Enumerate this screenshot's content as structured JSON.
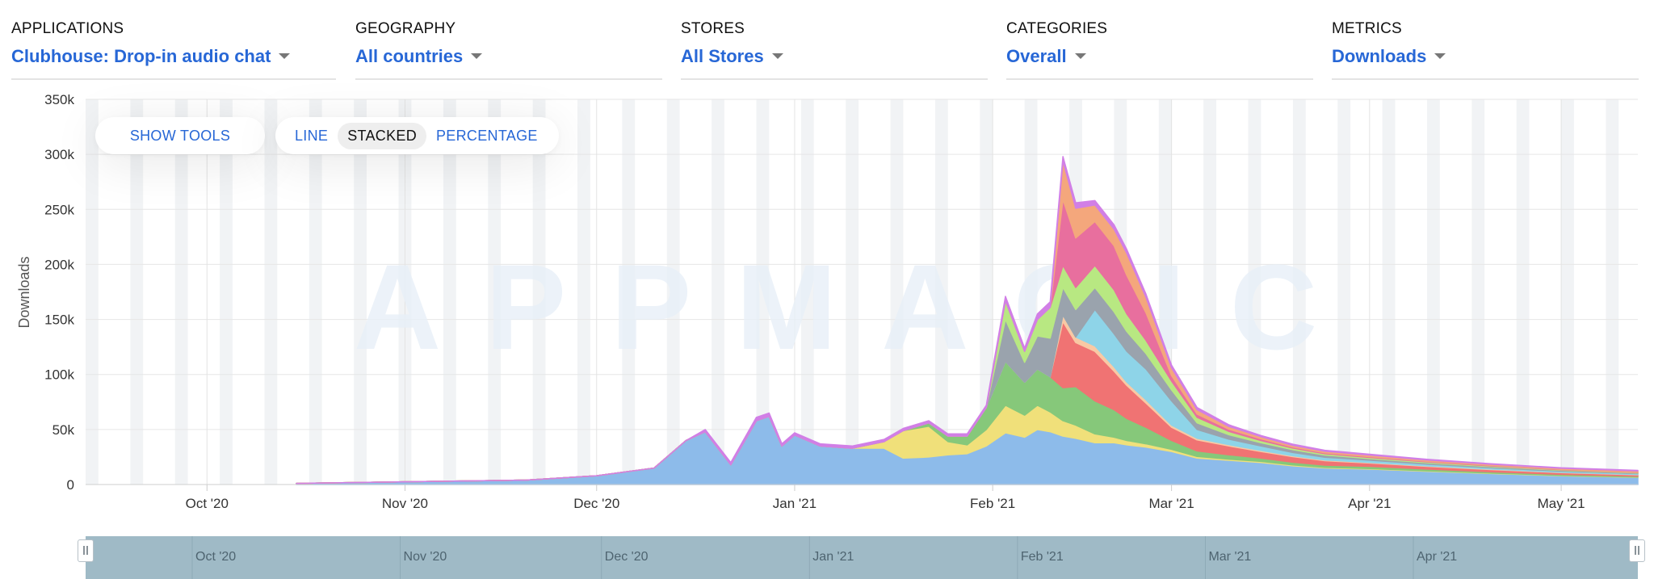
{
  "filters": [
    {
      "label": "APPLICATIONS",
      "value": "Clubhouse: Drop-in audio chat"
    },
    {
      "label": "GEOGRAPHY",
      "value": "All countries"
    },
    {
      "label": "STORES",
      "value": "All Stores"
    },
    {
      "label": "CATEGORIES",
      "value": "Overall"
    },
    {
      "label": "METRICS",
      "value": "Downloads"
    }
  ],
  "toolbar": {
    "show_tools": "SHOW TOOLS",
    "modes": [
      "LINE",
      "STACKED",
      "PERCENTAGE"
    ],
    "active_mode": "STACKED"
  },
  "watermark": "APPMAGIC",
  "navigator": {
    "labels": [
      "Oct '20",
      "Nov '20",
      "Dec '20",
      "Jan '21",
      "Feb '21",
      "Mar '21",
      "Apr '21"
    ]
  },
  "colors": {
    "accent": "#2767d6",
    "navigator": "#9fbac6",
    "weekend_band": "#f1f3f5"
  },
  "chart_data": {
    "type": "area",
    "stacked": true,
    "title": "",
    "xlabel": "",
    "ylabel": "Downloads",
    "ylim": [
      0,
      350000
    ],
    "yticks": [
      0,
      50000,
      100000,
      150000,
      200000,
      250000,
      300000,
      350000
    ],
    "ytick_labels": [
      "0",
      "50k",
      "100k",
      "150k",
      "200k",
      "250k",
      "300k",
      "350k"
    ],
    "x_range": [
      "2020-09-12",
      "2021-05-13"
    ],
    "xticks": [
      "2020-10-01",
      "2020-11-01",
      "2020-12-01",
      "2021-01-01",
      "2021-02-01",
      "2021-03-01",
      "2021-04-01",
      "2021-05-01"
    ],
    "xtick_labels": [
      "Oct '20",
      "Nov '20",
      "Dec '20",
      "Jan '21",
      "Feb '21",
      "Mar '21",
      "Apr '21",
      "May '21"
    ],
    "grid": true,
    "x": [
      "2020-10-15",
      "2020-11-01",
      "2020-11-20",
      "2020-12-01",
      "2020-12-10",
      "2020-12-15",
      "2020-12-18",
      "2020-12-22",
      "2020-12-26",
      "2020-12-28",
      "2020-12-30",
      "2021-01-01",
      "2021-01-05",
      "2021-01-10",
      "2021-01-15",
      "2021-01-18",
      "2021-01-22",
      "2021-01-25",
      "2021-01-28",
      "2021-01-31",
      "2021-02-03",
      "2021-02-06",
      "2021-02-08",
      "2021-02-10",
      "2021-02-12",
      "2021-02-14",
      "2021-02-17",
      "2021-02-20",
      "2021-02-22",
      "2021-02-25",
      "2021-03-01",
      "2021-03-05",
      "2021-03-10",
      "2021-03-15",
      "2021-03-20",
      "2021-03-25",
      "2021-04-01",
      "2021-04-10",
      "2021-04-20",
      "2021-05-01",
      "2021-05-13"
    ],
    "series": [
      {
        "color": "#8dbbea",
        "values": [
          1000,
          2500,
          4000,
          8000,
          15000,
          40000,
          48000,
          18000,
          58000,
          62000,
          35000,
          45000,
          35000,
          33000,
          33000,
          24000,
          25000,
          27000,
          28000,
          35000,
          47000,
          43000,
          50000,
          48000,
          44000,
          42000,
          38000,
          38000,
          36000,
          34000,
          30000,
          24000,
          22000,
          20000,
          17000,
          15000,
          14000,
          12000,
          10000,
          8000,
          6500
        ]
      },
      {
        "color": "#f0e07a",
        "values": [
          0,
          0,
          0,
          0,
          0,
          0,
          0,
          0,
          0,
          0,
          0,
          0,
          0,
          0,
          6000,
          25000,
          28000,
          12000,
          8000,
          15000,
          25000,
          20000,
          22000,
          18000,
          14000,
          12000,
          8000,
          5000,
          4000,
          3000,
          2000,
          1500,
          1000,
          1000,
          800,
          600,
          500,
          500,
          400,
          300,
          300
        ]
      },
      {
        "color": "#86c87a",
        "values": [
          0,
          0,
          0,
          0,
          0,
          0,
          0,
          0,
          0,
          0,
          0,
          0,
          0,
          0,
          0,
          0,
          3000,
          5000,
          8000,
          20000,
          40000,
          30000,
          33000,
          32000,
          30000,
          35000,
          30000,
          25000,
          20000,
          15000,
          8000,
          5000,
          4000,
          3000,
          2500,
          2000,
          2000,
          1500,
          1200,
          1000,
          800
        ]
      },
      {
        "color": "#f07373",
        "values": [
          0,
          0,
          0,
          0,
          0,
          0,
          0,
          0,
          0,
          0,
          0,
          0,
          0,
          0,
          0,
          0,
          0,
          0,
          0,
          0,
          0,
          0,
          0,
          0,
          60000,
          40000,
          45000,
          35000,
          30000,
          22000,
          12000,
          10000,
          8000,
          6000,
          5000,
          4000,
          3000,
          2500,
          2000,
          1500,
          1200
        ]
      },
      {
        "color": "#f9c9a4",
        "values": [
          0,
          0,
          0,
          0,
          0,
          0,
          0,
          0,
          0,
          0,
          0,
          0,
          0,
          0,
          0,
          0,
          0,
          0,
          0,
          0,
          0,
          0,
          0,
          0,
          6000,
          5000,
          5000,
          4000,
          3000,
          3000,
          2000,
          1500,
          1200,
          1000,
          800,
          700,
          600,
          500,
          400,
          300,
          300
        ]
      },
      {
        "color": "#8ed4e8",
        "values": [
          0,
          0,
          0,
          0,
          0,
          0,
          0,
          0,
          0,
          0,
          0,
          0,
          0,
          0,
          0,
          0,
          0,
          0,
          0,
          0,
          0,
          0,
          0,
          0,
          0,
          0,
          33000,
          30000,
          28000,
          28000,
          22000,
          8000,
          5000,
          4000,
          3000,
          2500,
          2000,
          1500,
          1200,
          1000,
          800
        ]
      },
      {
        "color": "#9aa3ad",
        "values": [
          0,
          0,
          0,
          0,
          0,
          0,
          0,
          0,
          0,
          0,
          0,
          0,
          0,
          0,
          0,
          0,
          0,
          0,
          0,
          0,
          38000,
          18000,
          30000,
          35000,
          25000,
          25000,
          20000,
          20000,
          18000,
          14000,
          10000,
          6000,
          4000,
          3000,
          2500,
          2000,
          1500,
          1200,
          1000,
          800,
          600
        ]
      },
      {
        "color": "#b8e882",
        "values": [
          0,
          0,
          0,
          0,
          0,
          0,
          0,
          0,
          0,
          0,
          0,
          0,
          0,
          0,
          0,
          0,
          0,
          0,
          0,
          0,
          17000,
          10000,
          15000,
          28000,
          20000,
          20000,
          20000,
          20000,
          16000,
          12000,
          8000,
          5000,
          3000,
          2000,
          1500,
          1200,
          1000,
          800,
          700,
          500,
          400
        ]
      },
      {
        "color": "#e86f9e",
        "values": [
          0,
          0,
          0,
          0,
          0,
          0,
          0,
          0,
          0,
          0,
          0,
          0,
          0,
          0,
          0,
          0,
          0,
          0,
          0,
          0,
          0,
          0,
          0,
          0,
          60000,
          45000,
          40000,
          40000,
          35000,
          25000,
          5000,
          3000,
          2000,
          1500,
          1000,
          800,
          700,
          600,
          500,
          400,
          300
        ]
      },
      {
        "color": "#f4a77c",
        "values": [
          0,
          0,
          0,
          0,
          0,
          0,
          0,
          0,
          0,
          0,
          0,
          0,
          0,
          0,
          0,
          0,
          0,
          0,
          0,
          0,
          0,
          0,
          0,
          0,
          35000,
          27000,
          15000,
          15000,
          20000,
          14000,
          7000,
          4000,
          2500,
          2000,
          1500,
          1500,
          1500,
          1200,
          1000,
          1000,
          1200
        ]
      },
      {
        "color": "#d17fe6",
        "values": [
          0,
          0,
          0,
          0,
          0,
          0,
          2000,
          2000,
          3000,
          3000,
          2000,
          2000,
          2000,
          2000,
          2000,
          2000,
          2000,
          2000,
          2000,
          2000,
          4000,
          3000,
          5000,
          5000,
          4000,
          5000,
          4000,
          4000,
          3500,
          3000,
          2500,
          2000,
          1500,
          1000,
          1000,
          800,
          700,
          600,
          500,
          400,
          400
        ]
      }
    ]
  }
}
